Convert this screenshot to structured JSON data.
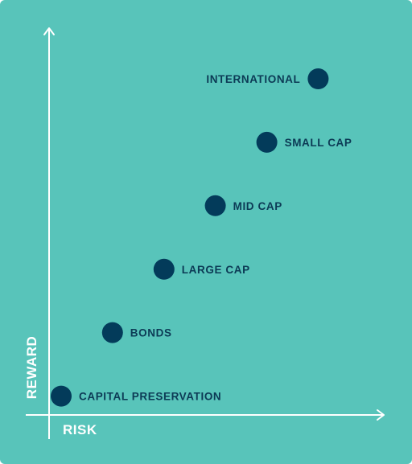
{
  "colors": {
    "background": "#58c4ba",
    "axis": "#ffffff",
    "marker": "#033b5a",
    "label": "#0c3a55"
  },
  "chart_data": {
    "type": "scatter",
    "title": "",
    "xlabel": "RISK",
    "ylabel": "REWARD",
    "grid": false,
    "ticks": false,
    "xlim": [
      0,
      6
    ],
    "ylim": [
      0,
      6
    ],
    "points": [
      {
        "label": "CAPITAL PRESERVATION",
        "x": 0.5,
        "y": 0.5,
        "label_side": "right"
      },
      {
        "label": "BONDS",
        "x": 1.5,
        "y": 1.5,
        "label_side": "right"
      },
      {
        "label": "LARGE CAP",
        "x": 2.5,
        "y": 2.5,
        "label_side": "right"
      },
      {
        "label": "MID CAP",
        "x": 3.5,
        "y": 3.5,
        "label_side": "right"
      },
      {
        "label": "SMALL CAP",
        "x": 4.5,
        "y": 4.5,
        "label_side": "right"
      },
      {
        "label": "INTERNATIONAL",
        "x": 5.5,
        "y": 5.5,
        "label_side": "left"
      }
    ]
  }
}
